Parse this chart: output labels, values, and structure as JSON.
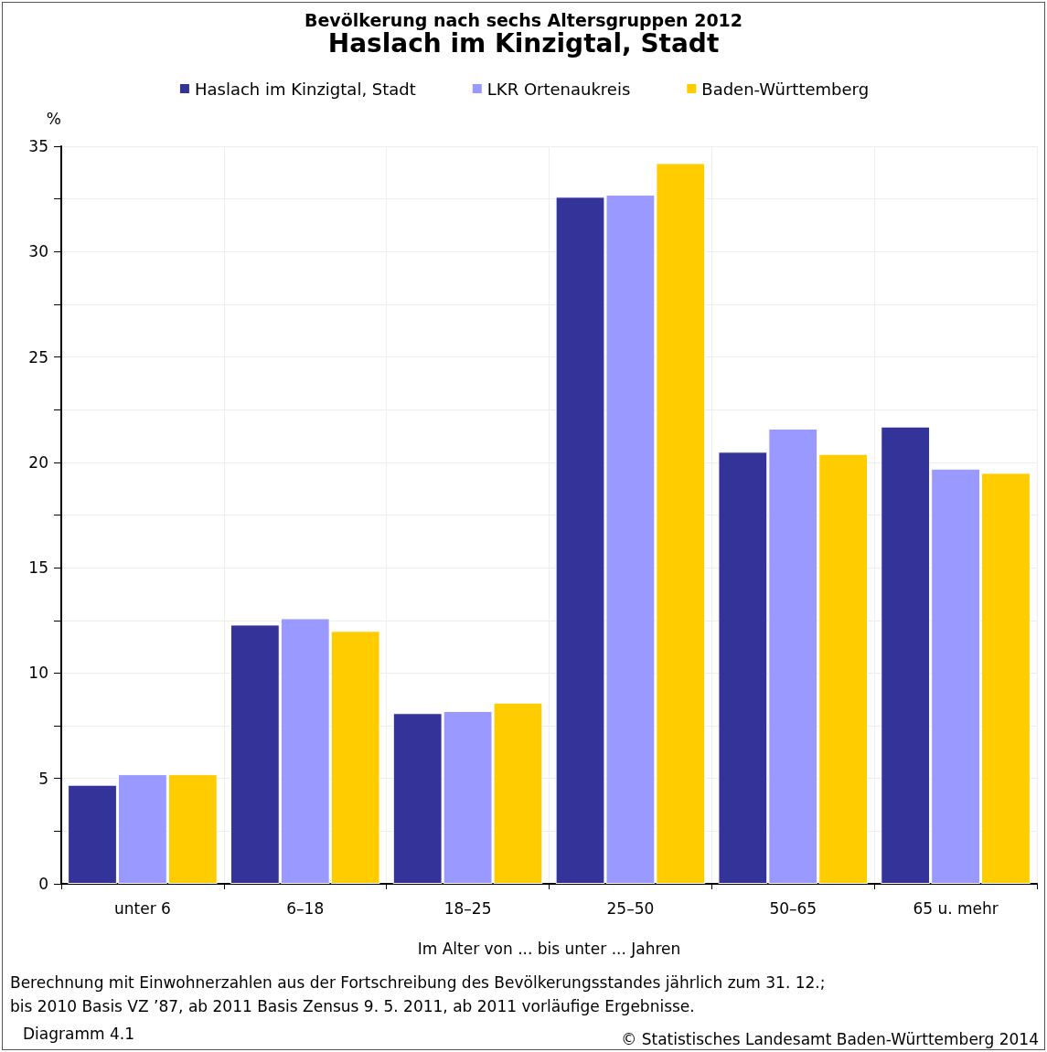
{
  "chart_data": {
    "type": "bar",
    "title": "Bevölkerung nach sechs Altersgruppen 2012",
    "subtitle": "Haslach im Kinzigtal, Stadt",
    "xlabel": "Im Alter von ... bis unter ... Jahren",
    "ylabel": "%",
    "categories": [
      "unter 6",
      "6–18",
      "18–25",
      "25–50",
      "50–65",
      "65 u. mehr"
    ],
    "series": [
      {
        "name": "Haslach im Kinzigtal, Stadt",
        "color": "#333399",
        "values": [
          4.7,
          12.3,
          8.1,
          32.6,
          20.5,
          21.7
        ]
      },
      {
        "name": "LKR Ortenaukreis",
        "color": "#9999ff",
        "values": [
          5.2,
          12.6,
          8.2,
          32.7,
          21.6,
          19.7
        ]
      },
      {
        "name": "Baden-Württemberg",
        "color": "#ffcc00",
        "values": [
          5.2,
          12.0,
          8.6,
          34.2,
          20.4,
          19.5
        ]
      }
    ],
    "ylim": [
      0,
      35
    ],
    "yticks": [
      0,
      {
        "value": 2.5,
        "label": null
      },
      5,
      {
        "value": 7.5,
        "label": null
      },
      10,
      {
        "value": 12.5,
        "label": null
      },
      15,
      {
        "value": 17.5,
        "label": null
      },
      20,
      {
        "value": 22.5,
        "label": null
      },
      25,
      {
        "value": 27.5,
        "label": null
      },
      30,
      {
        "value": 32.5,
        "label": null
      },
      35
    ],
    "grid": true,
    "legend": "top",
    "annotations": [
      "Berechnung mit Einwohnerzahlen aus der Fortschreibung des Bevölkerungsstandes jährlich zum 31. 12.;",
      "bis 2010 Basis VZ ’87, ab 2011 Basis Zensus 9. 5. 2011, ab 2011 vorläufige Ergebnisse.",
      "Diagramm 4.1",
      "© Statistisches Landesamt Baden-Württemberg 2014"
    ]
  }
}
